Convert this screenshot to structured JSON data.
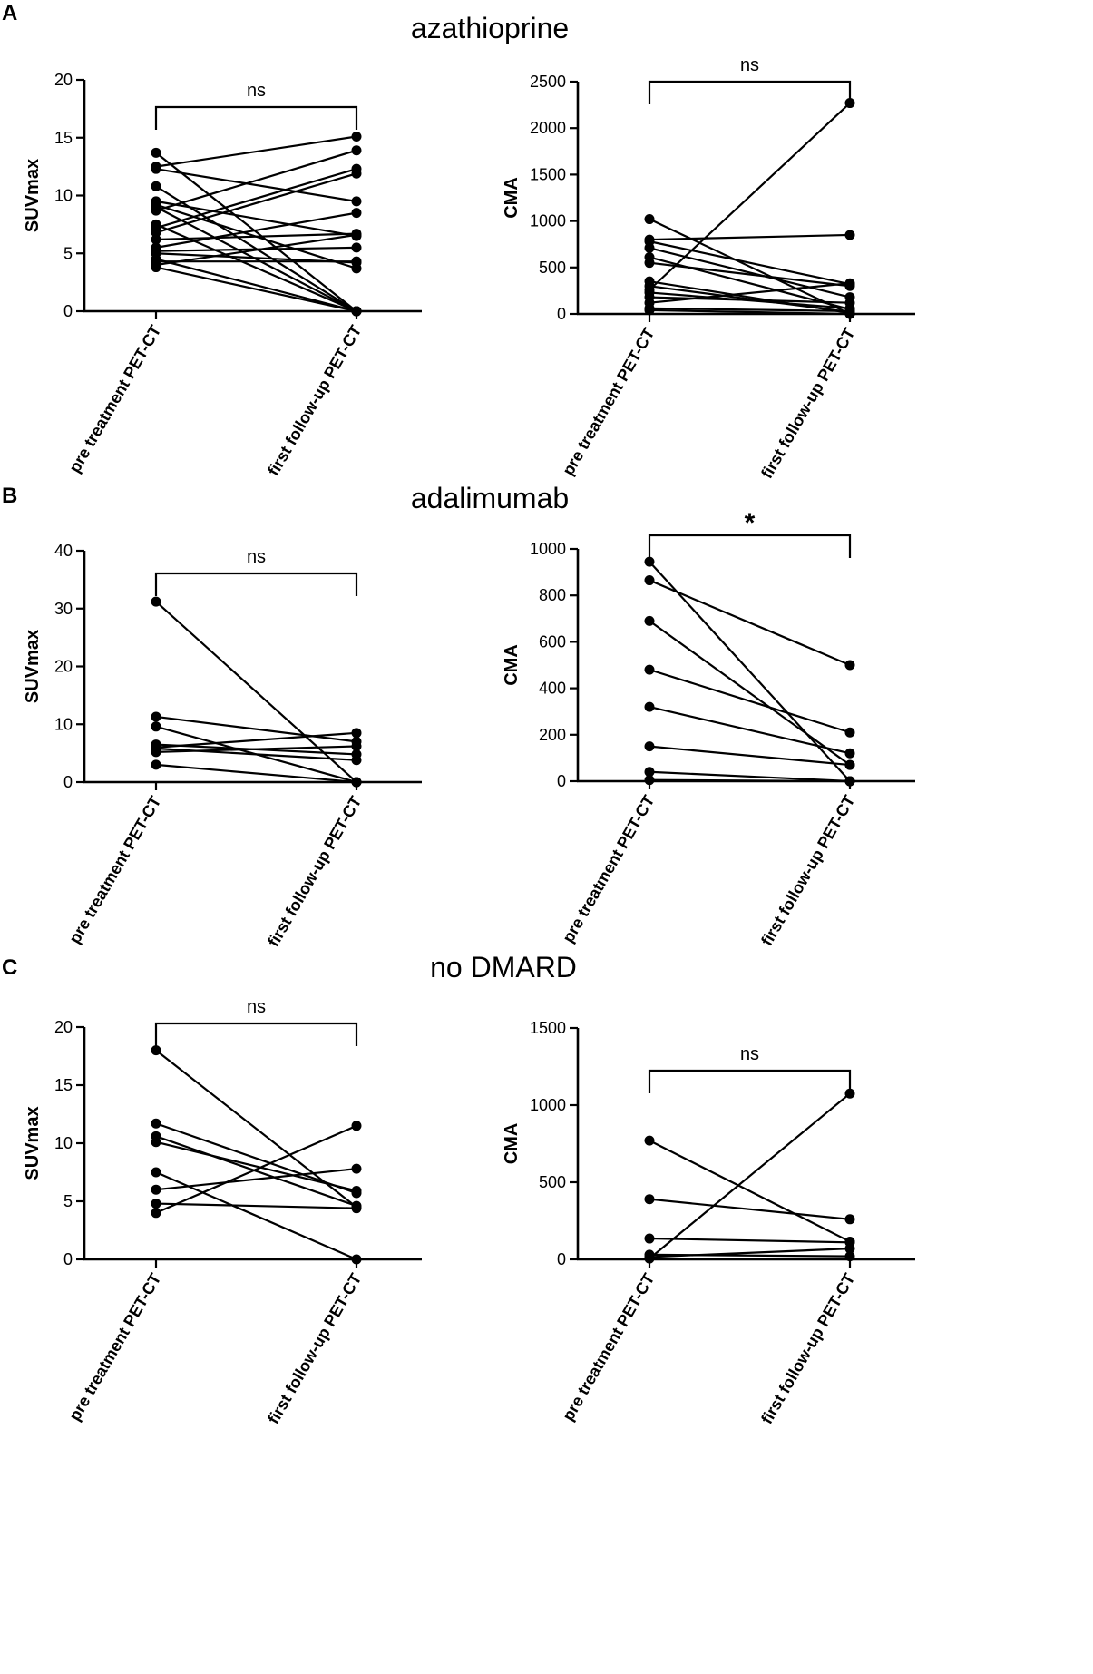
{
  "panels": [
    {
      "letter": "A",
      "title": "azathioprine"
    },
    {
      "letter": "B",
      "title": "adalimumab"
    },
    {
      "letter": "C",
      "title": "no DMARD"
    }
  ],
  "chart_data": [
    {
      "type": "line",
      "panel": "A",
      "ylabel": "SUVmax",
      "ylim": [
        0,
        20
      ],
      "yticks": [
        0,
        5,
        10,
        15,
        20
      ],
      "categories": [
        "pre treatment PET-CT",
        "first follow-up PET-CT"
      ],
      "significance": "ns",
      "pairs": [
        [
          13.7,
          0
        ],
        [
          12.5,
          15.1
        ],
        [
          12.3,
          9.5
        ],
        [
          10.8,
          0
        ],
        [
          9.5,
          6.5
        ],
        [
          9.2,
          3.7
        ],
        [
          9.0,
          0
        ],
        [
          8.7,
          13.9
        ],
        [
          7.5,
          0
        ],
        [
          7.2,
          12.3
        ],
        [
          6.8,
          11.9
        ],
        [
          6.2,
          6.7
        ],
        [
          5.5,
          8.5
        ],
        [
          5.2,
          5.5
        ],
        [
          5.0,
          4.2
        ],
        [
          4.5,
          0
        ],
        [
          4.3,
          4.3
        ],
        [
          4.0,
          6.6
        ],
        [
          3.8,
          0
        ]
      ]
    },
    {
      "type": "line",
      "panel": "A",
      "ylabel": "CMA",
      "ylim": [
        0,
        2500
      ],
      "yticks": [
        0,
        500,
        1000,
        1500,
        2000,
        2500
      ],
      "categories": [
        "pre treatment PET-CT",
        "first follow-up PET-CT"
      ],
      "significance": "ns",
      "pairs": [
        [
          1020,
          0
        ],
        [
          800,
          850
        ],
        [
          780,
          320
        ],
        [
          710,
          180
        ],
        [
          610,
          50
        ],
        [
          550,
          300
        ],
        [
          350,
          10
        ],
        [
          300,
          20
        ],
        [
          260,
          2270
        ],
        [
          230,
          60
        ],
        [
          180,
          120
        ],
        [
          120,
          330
        ],
        [
          60,
          30
        ],
        [
          40,
          0
        ]
      ]
    },
    {
      "type": "line",
      "panel": "B",
      "ylabel": "SUVmax",
      "ylim": [
        0,
        40
      ],
      "yticks": [
        0,
        10,
        20,
        30,
        40
      ],
      "categories": [
        "pre treatment PET-CT",
        "first follow-up PET-CT"
      ],
      "significance": "ns",
      "pairs": [
        [
          31.2,
          0
        ],
        [
          11.3,
          7.0
        ],
        [
          9.6,
          0
        ],
        [
          6.5,
          4.8
        ],
        [
          6.0,
          8.5
        ],
        [
          5.8,
          3.8
        ],
        [
          5.2,
          6.2
        ],
        [
          3.0,
          0
        ]
      ]
    },
    {
      "type": "line",
      "panel": "B",
      "ylabel": "CMA",
      "ylim": [
        0,
        1000
      ],
      "yticks": [
        0,
        200,
        400,
        600,
        800,
        1000
      ],
      "categories": [
        "pre treatment PET-CT",
        "first follow-up PET-CT"
      ],
      "significance": "*",
      "pairs": [
        [
          945,
          0
        ],
        [
          865,
          500
        ],
        [
          690,
          70
        ],
        [
          480,
          210
        ],
        [
          320,
          120
        ],
        [
          150,
          70
        ],
        [
          40,
          0
        ],
        [
          5,
          0
        ]
      ]
    },
    {
      "type": "line",
      "panel": "C",
      "ylabel": "SUVmax",
      "ylim": [
        0,
        20
      ],
      "yticks": [
        0,
        5,
        10,
        15,
        20
      ],
      "categories": [
        "pre treatment PET-CT",
        "first follow-up PET-CT"
      ],
      "significance": "ns",
      "pairs": [
        [
          18.0,
          4.5
        ],
        [
          11.7,
          5.7
        ],
        [
          10.6,
          4.6
        ],
        [
          10.1,
          5.9
        ],
        [
          7.5,
          0
        ],
        [
          6.0,
          7.8
        ],
        [
          4.8,
          4.4
        ],
        [
          4.0,
          11.5
        ]
      ]
    },
    {
      "type": "line",
      "panel": "C",
      "ylabel": "CMA",
      "ylim": [
        0,
        1500
      ],
      "yticks": [
        0,
        500,
        1000,
        1500
      ],
      "categories": [
        "pre treatment PET-CT",
        "first follow-up PET-CT"
      ],
      "significance": "ns",
      "pairs": [
        [
          770,
          115
        ],
        [
          390,
          260
        ],
        [
          135,
          110
        ],
        [
          30,
          20
        ],
        [
          15,
          70
        ],
        [
          5,
          1075
        ]
      ]
    }
  ]
}
